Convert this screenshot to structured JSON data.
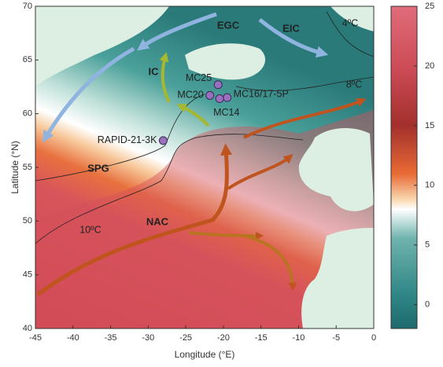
{
  "map": {
    "xlabel": "Longitude (°E)",
    "ylabel": "Latitude (°N)",
    "xlim": [
      -45,
      0
    ],
    "ylim": [
      40,
      70
    ],
    "xticks": [
      -45,
      -40,
      -35,
      -30,
      -25,
      -20,
      -15,
      -10,
      -5,
      0
    ],
    "yticks": [
      40,
      45,
      50,
      55,
      60,
      65,
      70
    ],
    "colorbar": {
      "lim": [
        -2,
        25
      ],
      "ticks": [
        0,
        5,
        10,
        15,
        20,
        25
      ]
    },
    "stations": [
      {
        "name": "RAPID-21-3K",
        "lon": -28,
        "lat": 57.5
      },
      {
        "name": "MC25",
        "lon": -20.7,
        "lat": 62.7
      },
      {
        "name": "MC20",
        "lon": -21.8,
        "lat": 61.7
      },
      {
        "name": "MC16/17-5P",
        "lon": -19.5,
        "lat": 61.5
      },
      {
        "name": "MC14",
        "lon": -20.5,
        "lat": 61.4
      }
    ],
    "labels": [
      "EGC",
      "EIC",
      "IC",
      "SPG",
      "NAC",
      "10ºC",
      "8ºC",
      "4ºC"
    ]
  }
}
